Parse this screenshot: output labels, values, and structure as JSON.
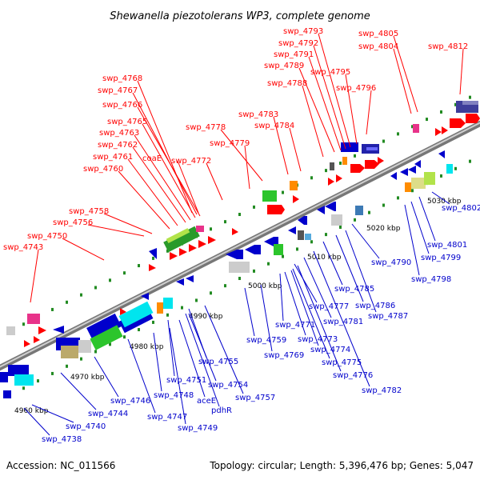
{
  "title": "Shewanella piezotolerans WP3, complete genome",
  "footer": {
    "accession": "Accession: NC_011566",
    "topology": "Topology: circular; Length: 5,396,476 bp; Genes: 5,047"
  },
  "scale_labels": [
    "4960 kbp",
    "4970 kbp",
    "4980 kbp",
    "4990 kbp",
    "5000 kbp",
    "5010 kbp",
    "5020 kbp",
    "5030 kbp"
  ],
  "top_labels": [
    "swp_4743",
    "swp_4750",
    "swp_4756",
    "swp_4758",
    "swp_4760",
    "swp_4761",
    "swp_4762",
    "swp_4763",
    "swp_4765",
    "swp_4766",
    "swp_4767",
    "swp_4768",
    "coaE",
    "swp_4772",
    "swp_4778",
    "swp_4779",
    "swp_4783",
    "swp_4784",
    "swp_4788",
    "swp_4789",
    "swp_4791",
    "swp_4792",
    "swp_4793",
    "swp_4795",
    "swp_4796",
    "swp_4804",
    "swp_4805",
    "swp_4812"
  ],
  "bottom_labels": [
    "swp_4738",
    "swp_4740",
    "swp_4744",
    "swp_4746",
    "swp_4747",
    "swp_4748",
    "swp_4749",
    "swp_4751",
    "aceE",
    "pdhR",
    "swp_4754",
    "swp_4755",
    "swp_4757",
    "swp_4759",
    "swp_4769",
    "swp_4771",
    "swp_4773",
    "swp_4774",
    "swp_4775",
    "swp_4776",
    "swp_4777",
    "swp_4781",
    "swp_4782",
    "swp_4785",
    "swp_4786",
    "swp_4787",
    "swp_4790",
    "swp_4798",
    "swp_4799",
    "swp_4801",
    "swp_4802"
  ],
  "colors": {
    "top_label": "#ff0000",
    "bottom_label": "#0000cc",
    "backbone": "#999999",
    "scale_dot": "#228b22"
  }
}
